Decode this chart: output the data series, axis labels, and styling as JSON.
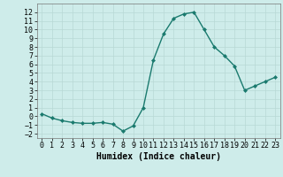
{
  "x": [
    0,
    1,
    2,
    3,
    4,
    5,
    6,
    7,
    8,
    9,
    10,
    11,
    12,
    13,
    14,
    15,
    16,
    17,
    18,
    19,
    20,
    21,
    22,
    23
  ],
  "y": [
    0.3,
    -0.2,
    -0.5,
    -0.7,
    -0.8,
    -0.8,
    -0.7,
    -0.9,
    -1.7,
    -1.1,
    1.0,
    6.5,
    9.5,
    11.3,
    11.8,
    12.0,
    10.0,
    8.0,
    7.0,
    5.8,
    3.0,
    3.5,
    4.0,
    4.5
  ],
  "line_color": "#1a7a6e",
  "marker": "D",
  "marker_size": 2,
  "background_color": "#ceecea",
  "grid_color": "#b8d8d5",
  "xlabel": "Humidex (Indice chaleur)",
  "xlim": [
    -0.5,
    23.5
  ],
  "ylim": [
    -2.5,
    13.0
  ],
  "yticks": [
    -2,
    -1,
    0,
    1,
    2,
    3,
    4,
    5,
    6,
    7,
    8,
    9,
    10,
    11,
    12
  ],
  "xticks": [
    0,
    1,
    2,
    3,
    4,
    5,
    6,
    7,
    8,
    9,
    10,
    11,
    12,
    13,
    14,
    15,
    16,
    17,
    18,
    19,
    20,
    21,
    22,
    23
  ],
  "xlabel_fontsize": 7,
  "tick_fontsize": 6,
  "line_width": 1.0
}
